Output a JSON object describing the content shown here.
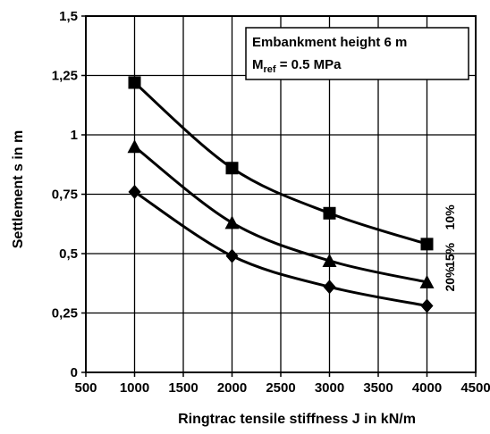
{
  "chart_data": {
    "type": "line",
    "xlabel": "Ringtrac tensile stiffness J in kN/m",
    "ylabel": "Settlement s in m",
    "xlim": [
      500,
      4500
    ],
    "ylim": [
      0,
      1.5
    ],
    "x_ticks": [
      500,
      1000,
      1500,
      2000,
      2500,
      3000,
      3500,
      4000,
      4500
    ],
    "x_tick_labels": [
      "500",
      "1000",
      "1500",
      "2000",
      "2500",
      "3000",
      "3500",
      "4000",
      "4500"
    ],
    "y_ticks": [
      0,
      0.25,
      0.5,
      0.75,
      1,
      1.25,
      1.5
    ],
    "y_tick_labels": [
      "0",
      "0,25",
      "0,5",
      "0,75",
      "1",
      "1,25",
      "1,5"
    ],
    "grid": true,
    "annotation": {
      "line1": "Embankment height 6 m",
      "line2_main": "M",
      "line2_sub": "ref",
      "line2_rest": " = 0.5 MPa"
    },
    "x": [
      1000,
      2000,
      3000,
      4000
    ],
    "series": [
      {
        "name": "10%",
        "marker": "square",
        "values": [
          1.22,
          0.86,
          0.67,
          0.54
        ]
      },
      {
        "name": "15%",
        "marker": "triangle",
        "values": [
          0.95,
          0.63,
          0.47,
          0.38
        ]
      },
      {
        "name": "20%",
        "marker": "diamond",
        "values": [
          0.76,
          0.49,
          0.36,
          0.28
        ]
      }
    ]
  }
}
